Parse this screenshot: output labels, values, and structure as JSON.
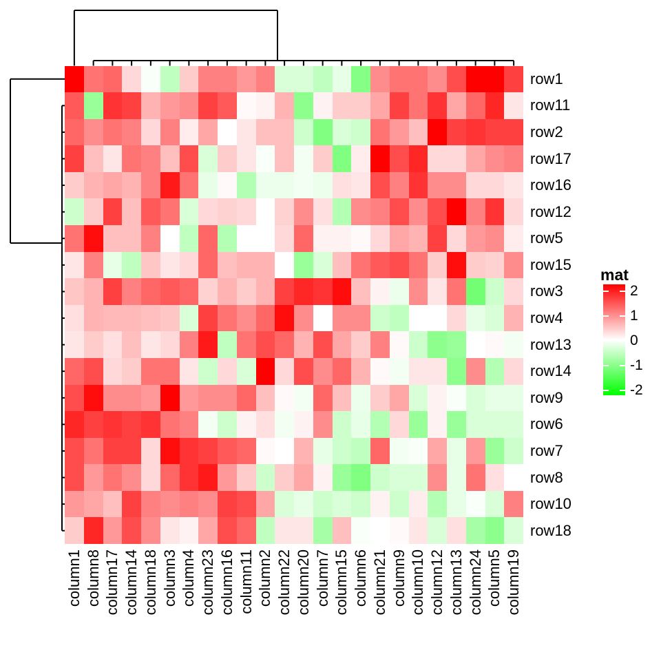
{
  "figure": {
    "background": "#FFFFFF"
  },
  "chart_data": {
    "type": "heatmap",
    "title": "",
    "legend_title": "mat",
    "legend_ticks": [
      "2",
      "1",
      "0",
      "-1",
      "-2"
    ],
    "legend_tick_values": [
      2,
      1,
      0,
      -1,
      -2
    ],
    "value_range": [
      -2,
      2
    ],
    "colors": {
      "high": "#FF0000",
      "mid": "#FFFFFF",
      "low": "#00FF00",
      "dendrogram": "#000000",
      "label_text": "#000000"
    },
    "clustering": {
      "row_dendrogram": true,
      "column_dendrogram": true
    },
    "rows": [
      "row1",
      "row11",
      "row2",
      "row17",
      "row16",
      "row12",
      "row5",
      "row15",
      "row3",
      "row4",
      "row13",
      "row14",
      "row9",
      "row6",
      "row7",
      "row8",
      "row10",
      "row18"
    ],
    "columns": [
      "column1",
      "column8",
      "column17",
      "column14",
      "column18",
      "column3",
      "column4",
      "column23",
      "column16",
      "column11",
      "column2",
      "column22",
      "column20",
      "column7",
      "column15",
      "column6",
      "column21",
      "column9",
      "column10",
      "column12",
      "column13",
      "column24",
      "column5",
      "column19"
    ],
    "values": [
      [
        2.0,
        1.1,
        1.2,
        0.3,
        -0.05,
        -0.5,
        0.4,
        1.0,
        1.0,
        0.8,
        1.0,
        -0.3,
        -0.3,
        -0.5,
        -0.2,
        -0.95,
        0.9,
        1.1,
        1.1,
        0.9,
        1.4,
        2.0,
        2.0,
        1.5
      ],
      [
        1.3,
        -0.8,
        1.6,
        1.5,
        0.6,
        0.8,
        0.9,
        1.5,
        1.3,
        0.05,
        0.1,
        0.6,
        -0.9,
        0.1,
        0.4,
        0.4,
        0.7,
        1.5,
        1.1,
        1.6,
        0.7,
        1.2,
        1.7,
        0.2
      ],
      [
        1.2,
        0.9,
        1.1,
        1.0,
        0.3,
        1.0,
        0.15,
        0.7,
        0.0,
        0.2,
        0.5,
        0.5,
        -0.4,
        -1.0,
        -0.3,
        -0.4,
        1.1,
        0.8,
        0.5,
        2.0,
        1.5,
        1.6,
        1.5,
        1.5
      ],
      [
        1.5,
        0.5,
        0.2,
        1.1,
        1.0,
        0.5,
        1.4,
        -0.3,
        0.4,
        0.2,
        -0.05,
        0.5,
        -0.1,
        0.4,
        -1.0,
        0.15,
        2.0,
        1.4,
        1.7,
        0.3,
        0.3,
        0.7,
        0.9,
        1.0
      ],
      [
        0.4,
        0.6,
        0.7,
        0.6,
        1.0,
        1.8,
        1.1,
        -0.2,
        0.05,
        -0.6,
        -0.15,
        -0.15,
        -0.1,
        -0.15,
        0.25,
        0.2,
        1.4,
        1.0,
        1.6,
        0.9,
        0.9,
        0.3,
        0.3,
        0.2
      ],
      [
        -0.4,
        0.4,
        1.5,
        0.5,
        1.3,
        1.1,
        -0.3,
        0.3,
        0.35,
        0.3,
        0.0,
        0.35,
        0.9,
        0.25,
        -0.6,
        0.9,
        1.0,
        1.4,
        0.9,
        1.4,
        2.0,
        1.0,
        1.6,
        0.3
      ],
      [
        1.1,
        1.9,
        0.5,
        0.5,
        1.0,
        0.0,
        -0.5,
        1.2,
        -0.6,
        0.0,
        0.0,
        0.3,
        1.2,
        0.1,
        0.1,
        0.05,
        0.3,
        0.7,
        0.6,
        1.5,
        0.3,
        0.8,
        0.9,
        0.15
      ],
      [
        0.2,
        1.0,
        -0.2,
        -0.5,
        0.45,
        0.2,
        0.3,
        1.2,
        0.5,
        0.6,
        0.6,
        0.0,
        -0.8,
        -0.3,
        0.5,
        1.1,
        1.3,
        1.4,
        1.1,
        0.4,
        1.9,
        0.4,
        0.35,
        0.9
      ],
      [
        0.45,
        0.6,
        1.5,
        1.0,
        1.2,
        1.3,
        1.2,
        0.35,
        0.6,
        0.4,
        0.6,
        1.5,
        1.7,
        1.6,
        1.9,
        0.5,
        0.1,
        -0.15,
        0.9,
        0.2,
        1.1,
        -1.1,
        -0.4,
        0.3
      ],
      [
        0.25,
        0.6,
        0.55,
        0.55,
        0.5,
        0.45,
        -0.3,
        1.5,
        1.1,
        0.9,
        1.2,
        1.9,
        0.9,
        0.0,
        0.9,
        0.9,
        -0.4,
        -0.5,
        0.0,
        0.0,
        0.3,
        -0.2,
        -0.3,
        0.6
      ],
      [
        0.2,
        0.4,
        0.25,
        0.5,
        0.2,
        0.3,
        1.0,
        1.8,
        -0.5,
        1.1,
        1.4,
        1.2,
        0.6,
        1.4,
        0.7,
        0.4,
        1.0,
        0.05,
        -0.4,
        -0.9,
        -0.8,
        0.0,
        0.05,
        -0.1
      ],
      [
        1.2,
        1.4,
        0.3,
        0.4,
        1.1,
        1.1,
        0.2,
        -0.4,
        0.3,
        -0.3,
        2.0,
        0.3,
        1.4,
        0.9,
        1.2,
        0.6,
        0.05,
        -0.1,
        0.2,
        0.2,
        -0.9,
        0.9,
        -0.6,
        0.3
      ],
      [
        1.4,
        1.9,
        0.9,
        0.9,
        0.8,
        2.0,
        0.8,
        0.9,
        0.9,
        1.2,
        0.5,
        0.05,
        -0.1,
        1.2,
        0.5,
        -0.15,
        0.4,
        0.7,
        -0.3,
        0.1,
        -0.05,
        -0.3,
        -0.2,
        -0.2
      ],
      [
        1.7,
        1.5,
        1.6,
        1.5,
        1.6,
        1.1,
        1.0,
        -0.1,
        -0.4,
        0.1,
        0.25,
        -0.1,
        0.1,
        0.9,
        -0.4,
        -0.2,
        -0.6,
        0.3,
        -0.8,
        0.1,
        -0.8,
        -0.3,
        -0.3,
        -0.3
      ],
      [
        1.4,
        1.1,
        1.5,
        1.5,
        0.3,
        1.9,
        1.6,
        1.5,
        1.3,
        1.2,
        0.05,
        0.0,
        0.6,
        -0.2,
        -0.4,
        -0.5,
        1.2,
        -0.1,
        -0.05,
        0.7,
        -0.2,
        0.8,
        -0.8,
        -0.4
      ],
      [
        1.4,
        0.8,
        1.1,
        0.9,
        0.3,
        1.2,
        1.6,
        1.8,
        0.8,
        0.4,
        -0.4,
        0.4,
        0.7,
        0.1,
        -0.8,
        -1.0,
        -0.4,
        -0.3,
        -0.3,
        0.9,
        -0.2,
        1.1,
        0.25,
        0.0
      ],
      [
        0.8,
        0.7,
        0.5,
        1.5,
        1.0,
        0.9,
        1.0,
        0.9,
        1.5,
        1.4,
        0.7,
        -0.3,
        -0.2,
        -0.4,
        -0.3,
        -0.4,
        0.1,
        -0.4,
        0.15,
        -0.6,
        -0.2,
        -0.05,
        -0.3,
        1.0
      ],
      [
        0.4,
        1.7,
        0.8,
        1.4,
        0.9,
        0.2,
        0.1,
        0.7,
        1.4,
        1.2,
        -0.5,
        0.2,
        0.2,
        -0.7,
        0.5,
        -0.05,
        0.0,
        0.05,
        0.2,
        -0.3,
        0.25,
        -0.7,
        -0.9,
        -0.3
      ]
    ]
  }
}
